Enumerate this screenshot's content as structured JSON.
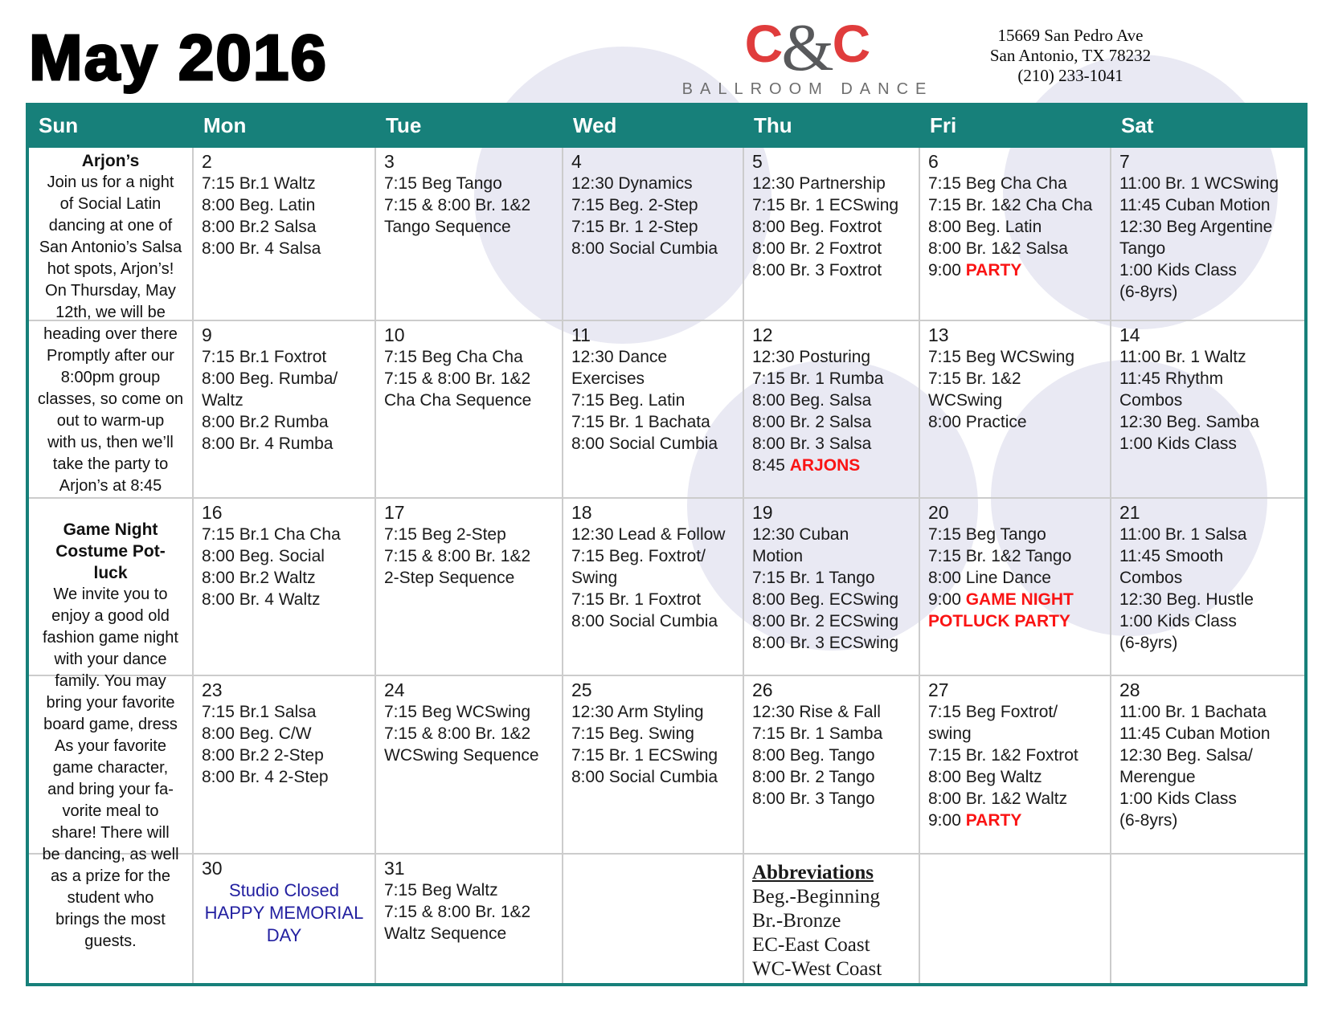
{
  "title": "May 2016",
  "logo": {
    "c_left": "C",
    "ampersand": "&",
    "c_right": "C",
    "subtitle": "BALLROOM DANCE"
  },
  "address": {
    "line1": "15669 San Pedro Ave",
    "line2": "San Antonio, TX 78232",
    "line3": "(210) 233-1041"
  },
  "colors": {
    "header_teal": "#17807A",
    "grid_gray": "#CCCCCC",
    "event_red": "#FA1414",
    "memorial_blue": "#221FA0",
    "logo_red": "#E03C3C",
    "logo_gray": "#58595B",
    "circle_lavender": "#E9E9F3"
  },
  "calendar": {
    "day_headers": [
      "Sun",
      "Mon",
      "Tue",
      "Wed",
      "Thu",
      "Fri",
      "Sat"
    ],
    "sun_notes": [
      {
        "heading_lines": [
          "Arjon’s"
        ],
        "body_lines": [
          "Join us for a night",
          "of Social Latin",
          "dancing at one of",
          "San Antonio’s Salsa",
          "hot spots, Arjon’s!",
          "On Thursday, May",
          "12th, we will be",
          "heading over there",
          "Promptly after our",
          "8:00pm group",
          "classes, so come on",
          "out to warm-up",
          "with us, then we’ll",
          "take the party to",
          "Arjon’s at 8:45"
        ]
      },
      {
        "heading_lines": [
          "Game Night",
          "Costume Pot-",
          "luck"
        ],
        "body_lines": [
          "We invite you to",
          "enjoy a good old",
          "fashion game night",
          "with your dance",
          "family.  You may",
          "bring your favorite",
          "board game, dress",
          "As your favorite",
          "game character,",
          "and bring your fa-",
          "vorite meal to",
          "share! There will",
          "be dancing, as well",
          "as a prize for the",
          "student  who",
          "brings the most",
          "guests."
        ]
      }
    ],
    "weeks": [
      [
        {
          "num": "2",
          "lines": [
            [
              "7:15 Br.1  Waltz"
            ],
            [
              "8:00 Beg. Latin"
            ],
            [
              "8:00 Br.2 Salsa"
            ],
            [
              "8:00 Br. 4 Salsa"
            ]
          ]
        },
        {
          "num": "3",
          "lines": [
            [
              "7:15 Beg Tango"
            ],
            [
              "7:15 & 8:00 Br. 1&2"
            ],
            [
              "Tango Sequence"
            ]
          ]
        },
        {
          "num": "4",
          "lines": [
            [
              "12:30 Dynamics"
            ],
            [
              "7:15 Beg. 2-Step"
            ],
            [
              "7:15 Br. 1 2-Step"
            ],
            [
              "8:00 Social Cumbia"
            ]
          ]
        },
        {
          "num": "5",
          "lines": [
            [
              "12:30 Partnership"
            ],
            [
              "7:15 Br. 1 ECSwing"
            ],
            [
              "8:00 Beg. Foxtrot"
            ],
            [
              "8:00 Br. 2 Foxtrot"
            ],
            [
              "8:00 Br. 3 Foxtrot"
            ]
          ]
        },
        {
          "num": "6",
          "lines": [
            [
              "7:15 Beg Cha Cha"
            ],
            [
              "7:15 Br. 1&2 Cha Cha"
            ],
            [
              "8:00 Beg. Latin"
            ],
            [
              "8:00 Br. 1&2 Salsa"
            ],
            [
              "9:00 ",
              {
                "red": "PARTY"
              }
            ]
          ]
        },
        {
          "num": "7",
          "lines": [
            [
              "11:00 Br. 1 WCSwing"
            ],
            [
              "11:45 Cuban Motion"
            ],
            [
              "12:30 Beg Argentine"
            ],
            [
              "Tango"
            ],
            [
              "1:00 Kids Class"
            ],
            [
              "(6-8yrs)"
            ]
          ]
        }
      ],
      [
        {
          "num": "9",
          "lines": [
            [
              "7:15 Br.1  Foxtrot"
            ],
            [
              "8:00 Beg. Rumba/"
            ],
            [
              "Waltz"
            ],
            [
              "8:00 Br.2 Rumba"
            ],
            [
              "8:00 Br. 4 Rumba"
            ]
          ]
        },
        {
          "num": "10",
          "lines": [
            [
              "7:15 Beg Cha Cha"
            ],
            [
              "7:15 & 8:00 Br. 1&2"
            ],
            [
              "Cha Cha Sequence"
            ]
          ]
        },
        {
          "num": "11",
          "lines": [
            [
              "12:30 Dance"
            ],
            [
              "Exercises"
            ],
            [
              "7:15 Beg. Latin"
            ],
            [
              "7:15 Br. 1 Bachata"
            ],
            [
              "8:00 Social Cumbia"
            ]
          ]
        },
        {
          "num": "12",
          "lines": [
            [
              "12:30 Posturing"
            ],
            [
              "7:15 Br. 1 Rumba"
            ],
            [
              "8:00 Beg. Salsa"
            ],
            [
              "8:00 Br. 2 Salsa"
            ],
            [
              "8:00 Br. 3 Salsa"
            ],
            [
              "8:45 ",
              {
                "red": "ARJONS"
              }
            ]
          ]
        },
        {
          "num": "13",
          "lines": [
            [
              "7:15 Beg  WCSwing"
            ],
            [
              "7:15 Br. 1&2"
            ],
            [
              "WCSwing"
            ],
            [
              "8:00 Practice"
            ]
          ]
        },
        {
          "num": "14",
          "lines": [
            [
              "11:00 Br. 1 Waltz"
            ],
            [
              "11:45 Rhythm"
            ],
            [
              "Combos"
            ],
            [
              "12:30 Beg. Samba"
            ],
            [
              "1:00 Kids Class"
            ]
          ]
        }
      ],
      [
        {
          "num": "16",
          "lines": [
            [
              "7:15 Br.1  Cha Cha"
            ],
            [
              "8:00 Beg. Social"
            ],
            [
              "8:00 Br.2 Waltz"
            ],
            [
              "8:00 Br. 4 Waltz"
            ]
          ]
        },
        {
          "num": "17",
          "lines": [
            [
              "7:15 Beg 2-Step"
            ],
            [
              "7:15 & 8:00 Br. 1&2"
            ],
            [
              "2-Step Sequence"
            ]
          ]
        },
        {
          "num": "18",
          "lines": [
            [
              "12:30 Lead & Follow"
            ],
            [
              "7:15 Beg. Foxtrot/"
            ],
            [
              "Swing"
            ],
            [
              "7:15 Br. 1 Foxtrot"
            ],
            [
              "8:00 Social Cumbia"
            ]
          ]
        },
        {
          "num": "19",
          "lines": [
            [
              "12:30 Cuban"
            ],
            [
              "Motion"
            ],
            [
              "7:15 Br. 1 Tango"
            ],
            [
              "8:00 Beg.  ECSwing"
            ],
            [
              "8:00 Br. 2  ECSwing"
            ],
            [
              "8:00 Br. 3  ECSwing"
            ]
          ]
        },
        {
          "num": "20",
          "lines": [
            [
              "7:15 Beg Tango"
            ],
            [
              "7:15 Br. 1&2 Tango"
            ],
            [
              "8:00 Line Dance"
            ],
            [
              "9:00 ",
              {
                "red": "GAME NIGHT"
              }
            ],
            [
              {
                "red": "POTLUCK PARTY"
              }
            ]
          ]
        },
        {
          "num": "21",
          "lines": [
            [
              "11:00 Br. 1 Salsa"
            ],
            [
              "11:45 Smooth"
            ],
            [
              "Combos"
            ],
            [
              "12:30 Beg. Hustle"
            ],
            [
              "1:00 Kids Class"
            ],
            [
              "(6-8yrs)"
            ]
          ]
        }
      ],
      [
        {
          "num": "23",
          "lines": [
            [
              "7:15 Br.1  Salsa"
            ],
            [
              "8:00 Beg. C/W"
            ],
            [
              "8:00 Br.2  2-Step"
            ],
            [
              "8:00 Br. 4 2-Step"
            ]
          ]
        },
        {
          "num": "24",
          "lines": [
            [
              "7:15 Beg WCSwing"
            ],
            [
              "7:15 & 8:00 Br. 1&2"
            ],
            [
              "WCSwing Sequence"
            ]
          ]
        },
        {
          "num": "25",
          "lines": [
            [
              "12:30 Arm Styling"
            ],
            [
              "7:15 Beg. Swing"
            ],
            [
              "7:15 Br. 1 ECSwing"
            ],
            [
              "8:00 Social Cumbia"
            ]
          ]
        },
        {
          "num": "26",
          "lines": [
            [
              "12:30 Rise & Fall"
            ],
            [
              "7:15 Br. 1 Samba"
            ],
            [
              "8:00 Beg. Tango"
            ],
            [
              "8:00 Br. 2 Tango"
            ],
            [
              "8:00 Br. 3 Tango"
            ]
          ]
        },
        {
          "num": "27",
          "lines": [
            [
              "7:15 Beg Foxtrot/"
            ],
            [
              "swing"
            ],
            [
              "7:15 Br. 1&2 Foxtrot"
            ],
            [
              "8:00 Beg Waltz"
            ],
            [
              "8:00 Br. 1&2  Waltz"
            ],
            [
              "9:00 ",
              {
                "red": "PARTY"
              }
            ]
          ]
        },
        {
          "num": "28",
          "lines": [
            [
              "11:00 Br. 1 Bachata"
            ],
            [
              "11:45 Cuban Motion"
            ],
            [
              "12:30 Beg. Salsa/"
            ],
            [
              "Merengue"
            ],
            [
              "1:00 Kids Class"
            ],
            [
              "(6-8yrs)"
            ]
          ]
        }
      ],
      [
        {
          "num": "30",
          "type": "closed",
          "lines": [
            "Studio Closed",
            "HAPPY MEMORIAL",
            "DAY"
          ]
        },
        {
          "num": "31",
          "lines": [
            [
              "7:15 Beg Waltz"
            ],
            [
              "7:15 & 8:00 Br. 1&2"
            ],
            [
              "Waltz Sequence"
            ]
          ]
        },
        {},
        {
          "type": "abbr"
        },
        {},
        {}
      ]
    ],
    "abbreviations": {
      "heading": "Abbreviations",
      "items": [
        "Beg.-Beginning",
        "Br.-Bronze",
        "EC-East Coast",
        "WC-West Coast"
      ]
    }
  }
}
